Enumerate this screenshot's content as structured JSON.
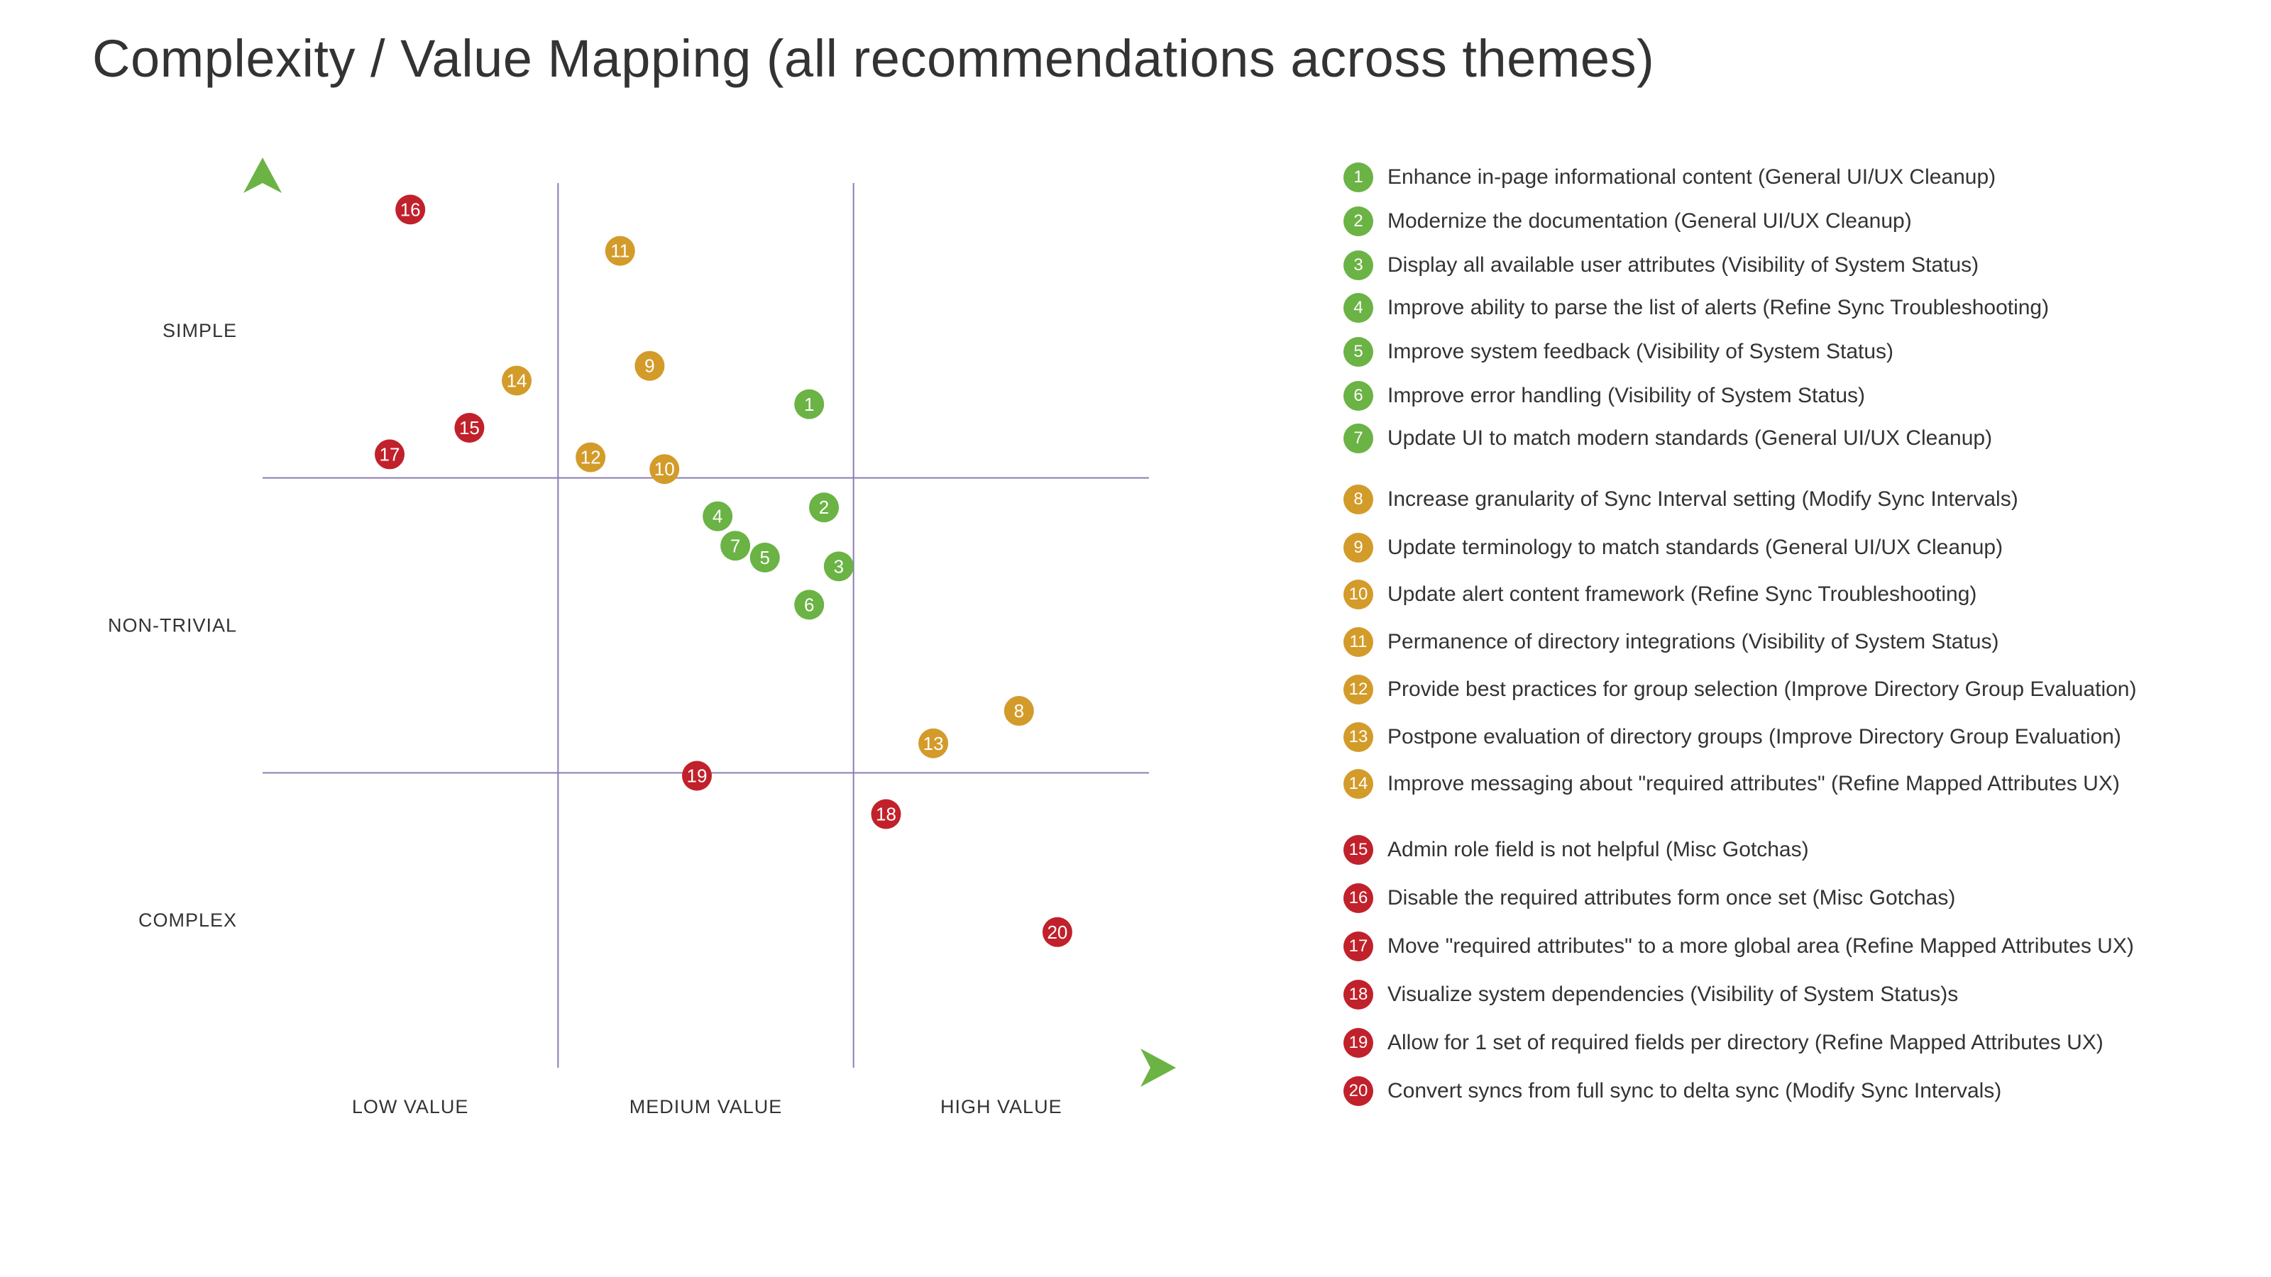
{
  "title": "Complexity / Value Mapping (all recommendations across themes)",
  "colors": {
    "green": "#6ab344",
    "gold": "#d39b2a",
    "red": "#c1212b",
    "axis_start": "#6b3aa0",
    "axis_end": "#6ab344",
    "grid": "#8d7cb3"
  },
  "chart_data": {
    "type": "scatter",
    "title": "Complexity / Value Mapping (all recommendations across themes)",
    "xlabel": "Value",
    "ylabel": "Complexity",
    "x_tick_labels": [
      "LOW VALUE",
      "MEDIUM VALUE",
      "HIGH VALUE"
    ],
    "y_tick_labels": [
      "SIMPLE",
      "NON-TRIVIAL",
      "COMPLEX"
    ],
    "xlim": [
      0,
      3
    ],
    "ylim": [
      0,
      3
    ],
    "grid": true,
    "legend_placement": "right",
    "points": [
      {
        "id": "1",
        "x": 1.85,
        "y": 2.25,
        "group": "green",
        "label": "Enhance in-page informational content (General UI/UX Cleanup)"
      },
      {
        "id": "2",
        "x": 1.9,
        "y": 1.9,
        "group": "green",
        "label": "Modernize the documentation (General UI/UX Cleanup)"
      },
      {
        "id": "3",
        "x": 1.95,
        "y": 1.7,
        "group": "green",
        "label": "Display all available user attributes (Visibility of System Status)"
      },
      {
        "id": "4",
        "x": 1.54,
        "y": 1.87,
        "group": "green",
        "label": "Improve ability to parse the list of alerts (Refine Sync Troubleshooting)"
      },
      {
        "id": "5",
        "x": 1.7,
        "y": 1.73,
        "group": "green",
        "label": "Improve system feedback (Visibility of System Status)"
      },
      {
        "id": "6",
        "x": 1.85,
        "y": 1.57,
        "group": "green",
        "label": "Improve error handling (Visibility of System Status)"
      },
      {
        "id": "7",
        "x": 1.6,
        "y": 1.77,
        "group": "green",
        "label": "Update UI to match modern standards (General UI/UX Cleanup)"
      },
      {
        "id": "8",
        "x": 2.56,
        "y": 1.21,
        "group": "gold",
        "label": "Increase granularity of Sync Interval setting (Modify Sync Intervals)"
      },
      {
        "id": "9",
        "x": 1.31,
        "y": 2.38,
        "group": "gold",
        "label": "Update terminology to match standards (General UI/UX Cleanup)"
      },
      {
        "id": "10",
        "x": 1.36,
        "y": 2.03,
        "group": "gold",
        "label": "Update alert content framework (Refine Sync Troubleshooting)"
      },
      {
        "id": "11",
        "x": 1.21,
        "y": 2.77,
        "group": "gold",
        "label": "Permanence of directory integrations (Visibility of System Status)"
      },
      {
        "id": "12",
        "x": 1.11,
        "y": 2.07,
        "group": "gold",
        "label": "Provide best practices for group selection (Improve Directory Group Evaluation)"
      },
      {
        "id": "13",
        "x": 2.27,
        "y": 1.1,
        "group": "gold",
        "label": "Postpone evaluation of directory groups (Improve Directory Group Evaluation)"
      },
      {
        "id": "14",
        "x": 0.86,
        "y": 2.33,
        "group": "gold",
        "label": "Improve messaging about \"required attributes\" (Refine Mapped Attributes UX)"
      },
      {
        "id": "15",
        "x": 0.7,
        "y": 2.17,
        "group": "red",
        "label": "Admin role field is not helpful (Misc Gotchas)"
      },
      {
        "id": "16",
        "x": 0.5,
        "y": 2.91,
        "group": "red",
        "label": "Disable the required attributes form once set (Misc Gotchas)"
      },
      {
        "id": "17",
        "x": 0.43,
        "y": 2.08,
        "group": "red",
        "label": "Move \"required attributes\" to a more global area (Refine Mapped Attributes UX)"
      },
      {
        "id": "18",
        "x": 2.11,
        "y": 0.86,
        "group": "red",
        "label": "Visualize system dependencies (Visibility of System Status)s"
      },
      {
        "id": "19",
        "x": 1.47,
        "y": 0.99,
        "group": "red",
        "label": "Allow for 1 set of required fields per directory (Refine Mapped Attributes UX)"
      },
      {
        "id": "20",
        "x": 2.69,
        "y": 0.46,
        "group": "red",
        "label": "Convert syncs from full sync to delta sync (Modify Sync Intervals)"
      }
    ]
  }
}
